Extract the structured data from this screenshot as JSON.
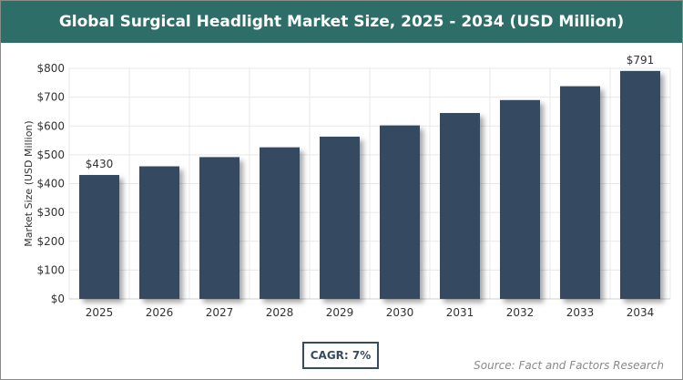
{
  "title": "Global Surgical Headlight Market Size, 2025 - 2034 (USD Million)",
  "cagr_label": "CAGR: 7%",
  "source": "Source: Fact and Factors Research",
  "colors": {
    "header": "#2e6e68",
    "bar": "#364a60",
    "grid": "#e8e8e8",
    "axis_text": "#333333"
  },
  "chart_data": {
    "type": "bar",
    "categories": [
      "2025",
      "2026",
      "2027",
      "2028",
      "2029",
      "2030",
      "2031",
      "2032",
      "2033",
      "2034"
    ],
    "values": [
      430,
      460,
      492,
      526,
      563,
      602,
      645,
      690,
      738,
      791
    ],
    "data_labels": [
      {
        "index": 0,
        "text": "$430"
      },
      {
        "index": 9,
        "text": "$791"
      }
    ],
    "ylabel": "Market Size (USD Million)",
    "xlabel": "",
    "ylim": [
      0,
      800
    ],
    "yticks": [
      0,
      100,
      200,
      300,
      400,
      500,
      600,
      700,
      800
    ],
    "ytick_labels": [
      "$0",
      "$100",
      "$200",
      "$300",
      "$400",
      "$500",
      "$600",
      "$700",
      "$800"
    ],
    "grid": true
  }
}
